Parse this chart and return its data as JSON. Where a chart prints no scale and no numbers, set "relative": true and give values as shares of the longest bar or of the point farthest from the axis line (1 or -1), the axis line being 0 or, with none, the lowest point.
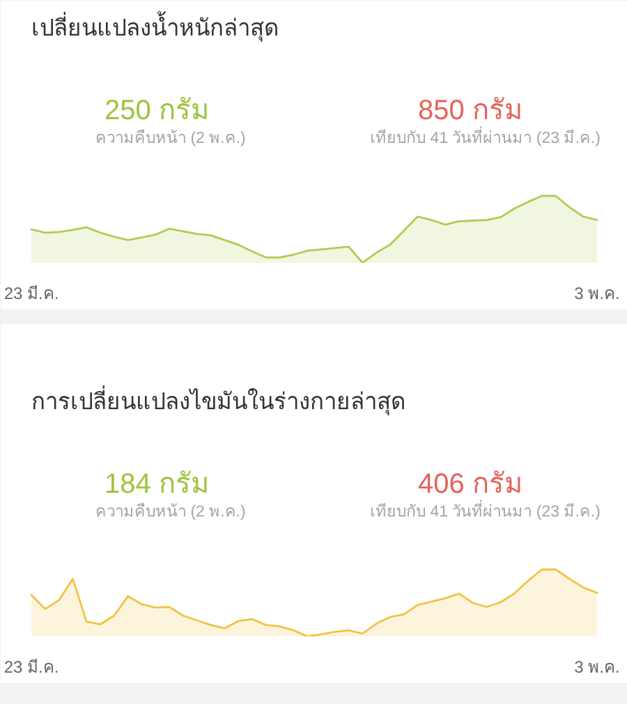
{
  "chart_data": [
    {
      "type": "area",
      "title": "เปลี่ยนแปลงน้ำหนักล่าสุด",
      "relative": true,
      "color": "#afcc55",
      "categories": [
        "23 มี.ค.",
        null,
        null,
        null,
        null,
        null,
        null,
        null,
        null,
        null,
        null,
        null,
        null,
        null,
        null,
        null,
        null,
        null,
        null,
        null,
        null,
        null,
        null,
        null,
        null,
        null,
        null,
        null,
        null,
        null,
        null,
        null,
        null,
        null,
        null,
        null,
        null,
        null,
        null,
        null,
        null,
        "3 พ.ค."
      ],
      "values": [
        0.5,
        0.45,
        0.46,
        0.49,
        0.53,
        0.45,
        0.39,
        0.34,
        0.38,
        0.42,
        0.51,
        0.47,
        0.43,
        0.41,
        0.34,
        0.27,
        0.17,
        0.08,
        0.08,
        0.12,
        0.18,
        0.2,
        0.22,
        0.24,
        0,
        0.15,
        0.27,
        0.48,
        0.69,
        0.64,
        0.57,
        0.62,
        0.63,
        0.64,
        0.68,
        0.81,
        0.91,
        1,
        1,
        0.83,
        0.69,
        0.64
      ],
      "annotations": [
        "250 กรัม",
        "ความคืบหน้า (2 พ.ค.)",
        "850 กรัม",
        "เทียบกับ 41 วันที่ผ่านมา (23 มี.ค.)"
      ]
    },
    {
      "type": "area",
      "title": "การเปลี่ยนแปลงไขมันในร่างกายล่าสุด",
      "relative": true,
      "color": "#f2c343",
      "categories": [
        "23 มี.ค.",
        null,
        null,
        null,
        null,
        null,
        null,
        null,
        null,
        null,
        null,
        null,
        null,
        null,
        null,
        null,
        null,
        null,
        null,
        null,
        null,
        null,
        null,
        null,
        null,
        null,
        null,
        null,
        null,
        null,
        null,
        null,
        null,
        null,
        null,
        null,
        null,
        null,
        null,
        null,
        null,
        "3 พ.ค."
      ],
      "values": [
        0.62,
        0.41,
        0.54,
        0.86,
        0.22,
        0.18,
        0.31,
        0.6,
        0.48,
        0.43,
        0.44,
        0.31,
        0.24,
        0.17,
        0.12,
        0.23,
        0.26,
        0.17,
        0.15,
        0.09,
        0,
        0.03,
        0.07,
        0.09,
        0.04,
        0.19,
        0.29,
        0.33,
        0.47,
        0.52,
        0.57,
        0.64,
        0.5,
        0.44,
        0.51,
        0.64,
        0.83,
        1,
        1,
        0.86,
        0.73,
        0.65
      ],
      "annotations": [
        "184 กรัม",
        "ความคืบหน้า (2 พ.ค.)",
        "406 กรัม",
        "เทียบกับ 41 วันที่ผ่านมา (23 มี.ค.)"
      ]
    }
  ]
}
